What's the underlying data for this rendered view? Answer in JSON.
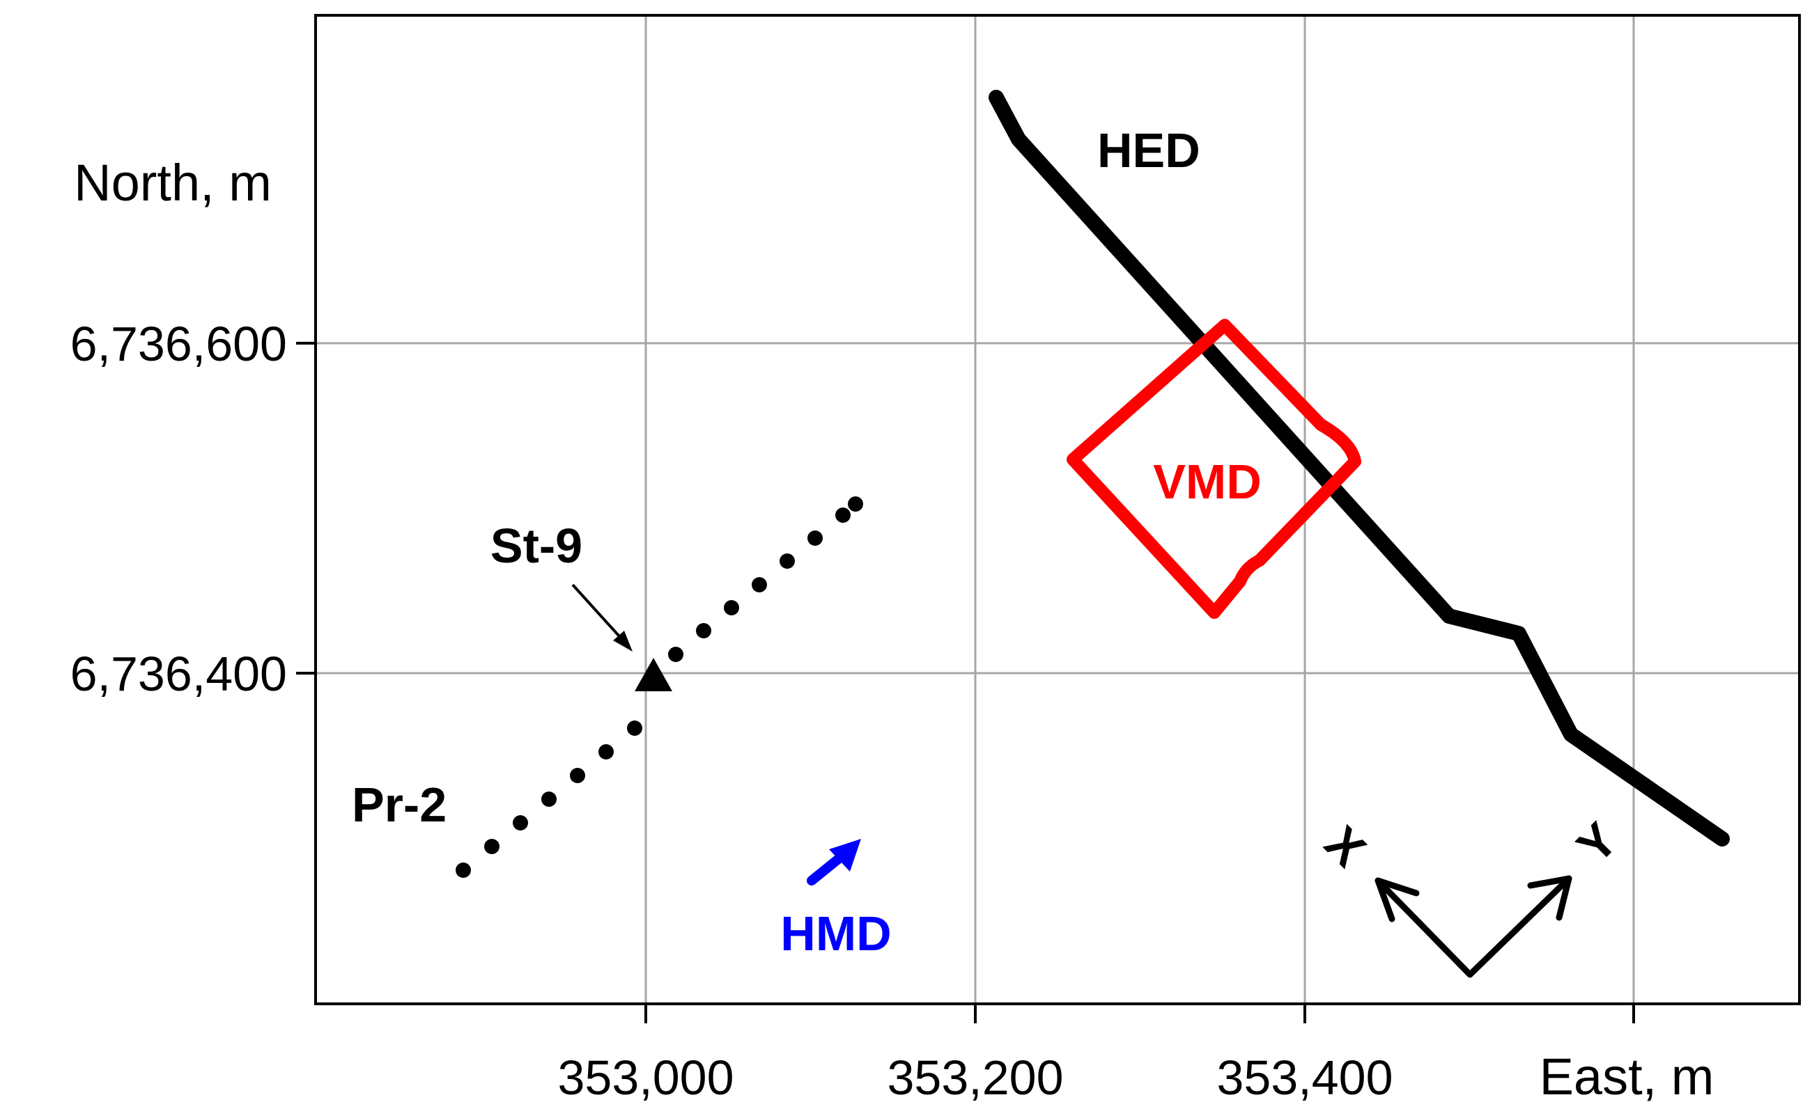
{
  "axes": {
    "x_title": "East, m",
    "y_title": "North, m",
    "x_ticks": [
      "353,000",
      "353,200",
      "353,400"
    ],
    "y_ticks": [
      "6,736,600",
      "6,736,400"
    ],
    "grid": true
  },
  "labels": {
    "hed": "HED",
    "vmd": "VMD",
    "hmd": "HMD",
    "station": "St-9",
    "profile": "Pr-2",
    "axis_x": "X",
    "axis_y": "Y"
  },
  "colors": {
    "frame": "#000000",
    "grid": "#a6a6a6",
    "hed": "#000000",
    "vmd": "#ff0000",
    "hmd": "#0000ff",
    "profile": "#000000"
  }
}
